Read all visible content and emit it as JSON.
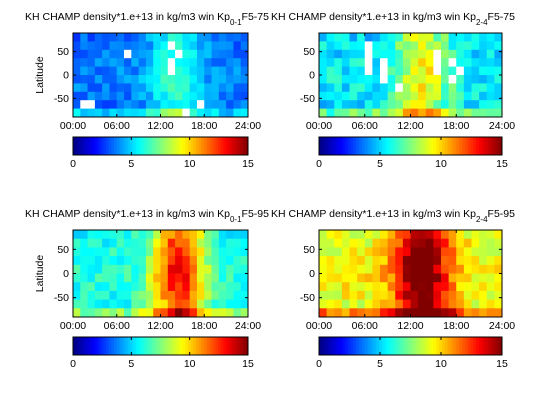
{
  "chart_data": [
    {
      "type": "heatmap",
      "title": "KH CHAMP density*1.e+13 in kg/m3 win Kp",
      "kp_range": "0-1",
      "f107_range": "5-75",
      "ylabel": "Latitude",
      "xlabel": "",
      "x_ticks": [
        "00:00",
        "06:00",
        "12:00",
        "18:00",
        "24:00"
      ],
      "y_ticks": [
        "50",
        "0",
        "-50"
      ],
      "xlim_hours": [
        0,
        24
      ],
      "ylim": [
        -90,
        90
      ],
      "colorbar": {
        "range": [
          0,
          15
        ],
        "ticks": [
          "0",
          "5",
          "10",
          "15"
        ]
      },
      "pattern": {
        "base": 3.8,
        "peak": 6.5,
        "peak_hour": 14,
        "lat_damp": 0.15,
        "variance": 1.5
      },
      "missing": [
        [
          1,
          8
        ],
        [
          2,
          8
        ],
        [
          7,
          2
        ],
        [
          13,
          1
        ],
        [
          13,
          3
        ],
        [
          13,
          4
        ],
        [
          14,
          2
        ],
        [
          15,
          9
        ],
        [
          17,
          8
        ]
      ]
    },
    {
      "type": "heatmap",
      "title": "KH CHAMP density*1.e+13 in kg/m3 win Kp",
      "kp_range": "2-4",
      "f107_range": "5-75",
      "ylabel": "",
      "xlabel": "",
      "x_ticks": [
        "00:00",
        "06:00",
        "12:00",
        "18:00",
        "24:00"
      ],
      "y_ticks": [
        "50",
        "0",
        "-50"
      ],
      "xlim_hours": [
        0,
        24
      ],
      "ylim": [
        -90,
        90
      ],
      "colorbar": {
        "range": [
          0,
          15
        ],
        "ticks": [
          "0",
          "5",
          "10",
          "15"
        ]
      },
      "pattern": {
        "base": 5.5,
        "peak": 9.5,
        "peak_hour": 13.5,
        "lat_damp": 0.1,
        "variance": 2.2
      },
      "missing": [
        [
          6,
          1
        ],
        [
          6,
          2
        ],
        [
          6,
          3
        ],
        [
          6,
          4
        ],
        [
          8,
          3
        ],
        [
          8,
          4
        ],
        [
          8,
          5
        ],
        [
          10,
          6
        ],
        [
          15,
          2
        ],
        [
          15,
          3
        ],
        [
          15,
          4
        ],
        [
          17,
          3
        ],
        [
          17,
          5
        ],
        [
          18,
          4
        ]
      ]
    },
    {
      "type": "heatmap",
      "title": "KH CHAMP density*1.e+13 in kg/m3 win Kp",
      "kp_range": "0-1",
      "f107_range": "5-95",
      "ylabel": "Latitude",
      "xlabel": "",
      "x_ticks": [
        "00:00",
        "06:00",
        "12:00",
        "18:00",
        "24:00"
      ],
      "y_ticks": [
        "50",
        "0",
        "-50"
      ],
      "xlim_hours": [
        0,
        24
      ],
      "ylim": [
        -90,
        90
      ],
      "colorbar": {
        "range": [
          0,
          15
        ],
        "ticks": [
          "0",
          "5",
          "10",
          "15"
        ]
      },
      "pattern": {
        "base": 6.2,
        "peak": 13.2,
        "peak_hour": 14.5,
        "lat_damp": 0.12,
        "variance": 1.8
      },
      "missing": []
    },
    {
      "type": "heatmap",
      "title": "KH CHAMP density*1.e+13 in kg/m3 win Kp",
      "kp_range": "2-4",
      "f107_range": "5-95",
      "ylabel": "",
      "xlabel": "",
      "x_ticks": [
        "00:00",
        "06:00",
        "12:00",
        "18:00",
        "24:00"
      ],
      "y_ticks": [
        "50",
        "0",
        "-50"
      ],
      "xlim_hours": [
        0,
        24
      ],
      "ylim": [
        -90,
        90
      ],
      "colorbar": {
        "range": [
          0,
          15
        ],
        "ticks": [
          "0",
          "5",
          "10",
          "15"
        ]
      },
      "pattern": {
        "base": 9.5,
        "peak": 16,
        "peak_hour": 13.5,
        "lat_damp": 0.08,
        "variance": 2.0
      },
      "missing": []
    }
  ]
}
